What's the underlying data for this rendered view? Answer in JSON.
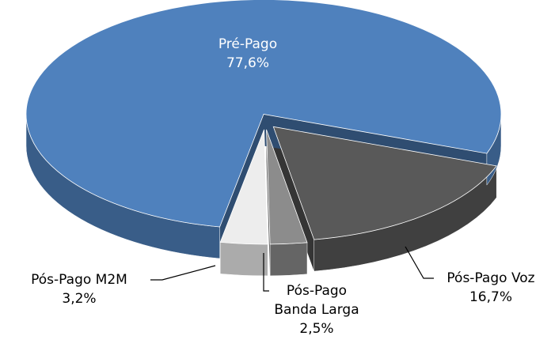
{
  "chart_data": {
    "type": "pie",
    "categories": [
      "Pré-Pago",
      "Pós-Pago Voz",
      "Pós-Pago Banda Larga",
      "Pós-Pago M2M"
    ],
    "values": [
      77.6,
      16.7,
      2.5,
      3.2
    ],
    "value_labels": [
      "77,6%",
      "16,7%",
      "2,5%",
      "3,2%"
    ],
    "colors": [
      "#4f81bd",
      "#595959",
      "#8c8c8c",
      "#ededed"
    ]
  }
}
